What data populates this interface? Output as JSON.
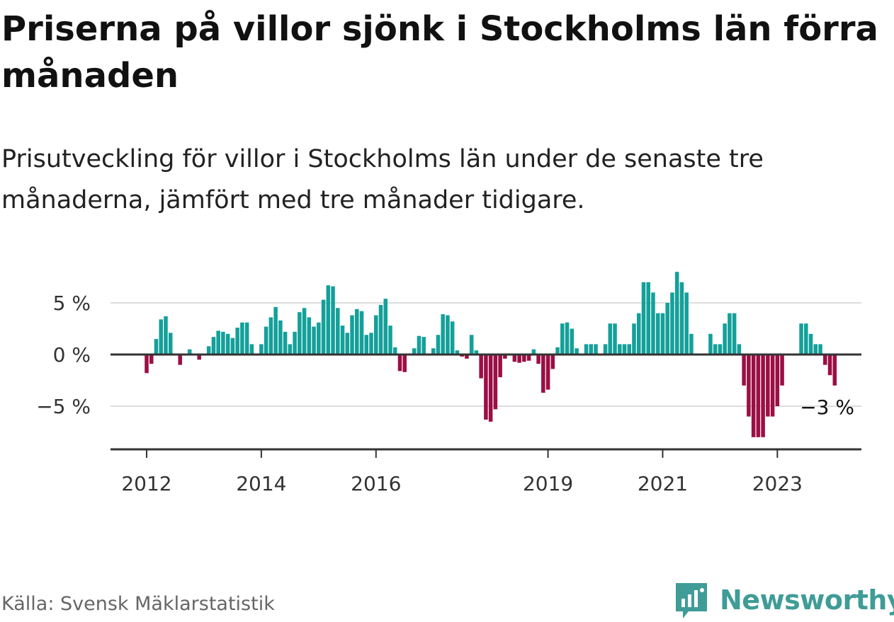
{
  "title": "Priserna på villor sjönk i Stockholms län förra månaden",
  "subtitle": "Prisutveckling för villor i Stockholms län under de senaste tre månaderna, jämfört med tre månader tidigare.",
  "source": "Källa: Svensk Mäklarstatistik",
  "brand": "Newsworthy",
  "colors": {
    "positive": "#14a09a",
    "negative": "#9b0f45",
    "grid": "#dddddd",
    "axis": "#333333",
    "brand": "#3f9c97"
  },
  "chart_data": {
    "type": "bar",
    "title": "Priserna på villor sjönk i Stockholms län förra månaden",
    "subtitle": "Prisutveckling för villor i Stockholms län under de senaste tre månaderna, jämfört med tre månader tidigare.",
    "xlabel": "",
    "ylabel": "",
    "ylim": [
      -9,
      6
    ],
    "x_start": {
      "year": 2012,
      "month": 1
    },
    "yticks": [
      {
        "value": 5,
        "label": "5 %"
      },
      {
        "value": 0,
        "label": "0 %"
      },
      {
        "value": -5,
        "label": "−5 %"
      }
    ],
    "xticks": [
      {
        "value": 2012,
        "label": "2012"
      },
      {
        "value": 2014,
        "label": "2014"
      },
      {
        "value": 2016,
        "label": "2016"
      },
      {
        "value": 2019,
        "label": "2019"
      },
      {
        "value": 2021,
        "label": "2021"
      },
      {
        "value": 2023,
        "label": "2023"
      }
    ],
    "values": [
      -1.8,
      -0.9,
      1.5,
      3.4,
      3.7,
      2.1,
      0,
      -1.0,
      0,
      0.5,
      0,
      -0.5,
      0,
      0.8,
      1.7,
      2.3,
      2.2,
      2.0,
      1.6,
      2.6,
      3.1,
      3.1,
      1.0,
      0,
      1.0,
      2.7,
      3.6,
      4.6,
      3.3,
      2.2,
      1.0,
      2.2,
      4.1,
      4.5,
      3.6,
      2.7,
      3.1,
      5.3,
      6.7,
      6.6,
      4.5,
      2.8,
      2.1,
      3.8,
      4.4,
      4.2,
      1.9,
      2.1,
      3.8,
      4.8,
      5.4,
      2.8,
      0.7,
      -1.6,
      -1.7,
      0,
      0.6,
      1.8,
      1.7,
      0,
      0.6,
      1.9,
      3.9,
      3.8,
      3.2,
      0.4,
      -0.2,
      -0.4,
      1.9,
      0.4,
      -2.3,
      -6.3,
      -6.5,
      -5.3,
      -2.2,
      -0.4,
      0,
      -0.7,
      -0.8,
      -0.7,
      -0.6,
      0.5,
      -0.9,
      -3.7,
      -3.4,
      -1.4,
      0.7,
      3.0,
      3.1,
      2.5,
      0.6,
      0,
      1.0,
      1.0,
      1.0,
      0,
      1.0,
      3.0,
      3.0,
      1.0,
      1.0,
      1.0,
      3.0,
      4.0,
      7.0,
      7.0,
      6.0,
      4.0,
      4.0,
      5.0,
      6.0,
      8.0,
      7.0,
      6.0,
      2.0,
      0,
      0,
      0,
      2.0,
      1.0,
      1.0,
      3.0,
      4.0,
      4.0,
      1.0,
      -3.0,
      -6.0,
      -8.0,
      -8.0,
      -8.0,
      -6.0,
      -6.0,
      -5.0,
      -3.0,
      0,
      0,
      0,
      3.0,
      3.0,
      2.0,
      1.0,
      1.0,
      -1.0,
      -2.0,
      -3.0
    ],
    "last_value_label": "−3 %"
  }
}
